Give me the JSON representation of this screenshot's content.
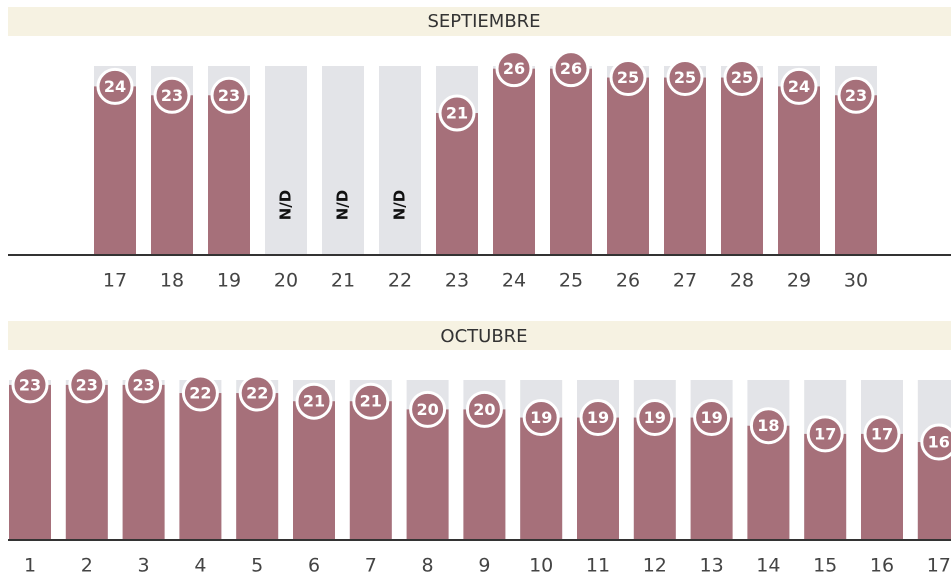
{
  "chart_data": [
    {
      "type": "bar",
      "title": "SEPTIEMBRE",
      "categories": [
        "17",
        "18",
        "19",
        "20",
        "21",
        "22",
        "23",
        "24",
        "25",
        "26",
        "27",
        "28",
        "29",
        "30"
      ],
      "values": [
        24,
        23,
        23,
        null,
        null,
        null,
        21,
        26,
        26,
        25,
        25,
        25,
        24,
        23
      ],
      "value_labels": [
        "24",
        "23",
        "23",
        "N/D",
        "N/D",
        "N/D",
        "21",
        "26",
        "26",
        "25",
        "25",
        "25",
        "24",
        "23"
      ],
      "color": "#a6707a",
      "ylim": [
        5,
        26.3
      ]
    },
    {
      "type": "bar",
      "title": "OCTUBRE",
      "categories": [
        "1",
        "2",
        "3",
        "4",
        "5",
        "6",
        "7",
        "8",
        "9",
        "10",
        "11",
        "12",
        "13",
        "14",
        "15",
        "16",
        "17"
      ],
      "values": [
        23,
        23,
        23,
        22,
        22,
        21,
        21,
        20,
        20,
        19,
        19,
        19,
        19,
        18,
        17,
        17,
        16
      ],
      "value_labels": [
        "23",
        "23",
        "23",
        "22",
        "22",
        "21",
        "21",
        "20",
        "20",
        "19",
        "19",
        "19",
        "19",
        "18",
        "17",
        "17",
        "16"
      ],
      "color": "#a6707a",
      "ylim": [
        4,
        23.6
      ]
    }
  ]
}
